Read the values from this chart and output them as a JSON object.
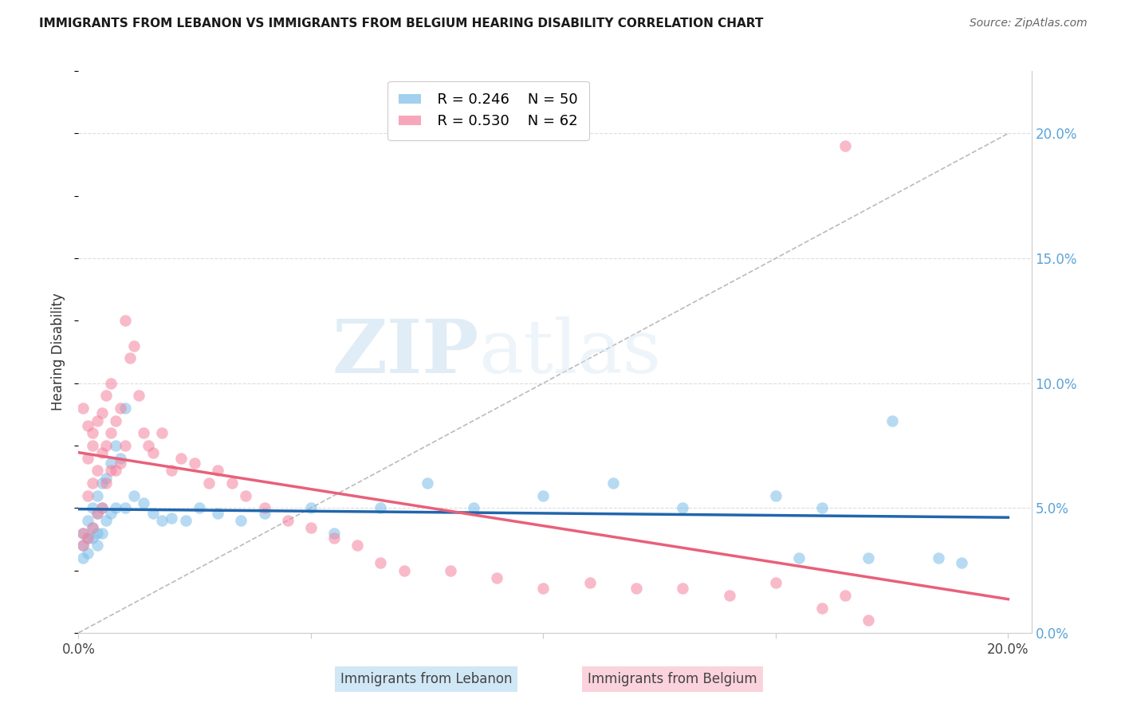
{
  "title": "IMMIGRANTS FROM LEBANON VS IMMIGRANTS FROM BELGIUM HEARING DISABILITY CORRELATION CHART",
  "source": "Source: ZipAtlas.com",
  "ylabel": "Hearing Disability",
  "xlim": [
    0.0,
    0.2
  ],
  "ylim": [
    0.0,
    0.22
  ],
  "legend_lebanon_R": "0.246",
  "legend_lebanon_N": "50",
  "legend_belgium_R": "0.530",
  "legend_belgium_N": "62",
  "color_lebanon": "#7bbde8",
  "color_belgium": "#f4829e",
  "color_lebanon_line": "#2166ac",
  "color_belgium_line": "#e8607a",
  "watermark_zip": "ZIP",
  "watermark_atlas": "atlas",
  "leb_x": [
    0.001,
    0.001,
    0.001,
    0.002,
    0.002,
    0.002,
    0.003,
    0.003,
    0.003,
    0.004,
    0.004,
    0.004,
    0.004,
    0.005,
    0.005,
    0.005,
    0.006,
    0.006,
    0.007,
    0.007,
    0.008,
    0.008,
    0.009,
    0.01,
    0.01,
    0.012,
    0.014,
    0.016,
    0.018,
    0.02,
    0.023,
    0.026,
    0.03,
    0.035,
    0.04,
    0.05,
    0.055,
    0.065,
    0.075,
    0.085,
    0.1,
    0.115,
    0.13,
    0.15,
    0.155,
    0.16,
    0.17,
    0.175,
    0.185,
    0.19
  ],
  "leb_y": [
    0.04,
    0.035,
    0.03,
    0.045,
    0.038,
    0.032,
    0.042,
    0.05,
    0.038,
    0.055,
    0.048,
    0.04,
    0.035,
    0.06,
    0.05,
    0.04,
    0.062,
    0.045,
    0.068,
    0.048,
    0.075,
    0.05,
    0.07,
    0.09,
    0.05,
    0.055,
    0.052,
    0.048,
    0.045,
    0.046,
    0.045,
    0.05,
    0.048,
    0.045,
    0.048,
    0.05,
    0.04,
    0.05,
    0.06,
    0.05,
    0.055,
    0.06,
    0.05,
    0.055,
    0.03,
    0.05,
    0.03,
    0.085,
    0.03,
    0.028
  ],
  "bel_x": [
    0.001,
    0.001,
    0.001,
    0.002,
    0.002,
    0.002,
    0.002,
    0.003,
    0.003,
    0.003,
    0.003,
    0.004,
    0.004,
    0.004,
    0.005,
    0.005,
    0.005,
    0.006,
    0.006,
    0.006,
    0.007,
    0.007,
    0.007,
    0.008,
    0.008,
    0.009,
    0.009,
    0.01,
    0.01,
    0.011,
    0.012,
    0.013,
    0.014,
    0.015,
    0.016,
    0.018,
    0.02,
    0.022,
    0.025,
    0.028,
    0.03,
    0.033,
    0.036,
    0.04,
    0.045,
    0.05,
    0.055,
    0.06,
    0.065,
    0.07,
    0.08,
    0.09,
    0.1,
    0.11,
    0.12,
    0.13,
    0.14,
    0.15,
    0.16,
    0.165,
    0.17,
    0.165
  ],
  "bel_y": [
    0.035,
    0.04,
    0.09,
    0.038,
    0.055,
    0.07,
    0.083,
    0.042,
    0.06,
    0.075,
    0.08,
    0.048,
    0.065,
    0.085,
    0.05,
    0.072,
    0.088,
    0.06,
    0.075,
    0.095,
    0.065,
    0.08,
    0.1,
    0.065,
    0.085,
    0.068,
    0.09,
    0.075,
    0.125,
    0.11,
    0.115,
    0.095,
    0.08,
    0.075,
    0.072,
    0.08,
    0.065,
    0.07,
    0.068,
    0.06,
    0.065,
    0.06,
    0.055,
    0.05,
    0.045,
    0.042,
    0.038,
    0.035,
    0.028,
    0.025,
    0.025,
    0.022,
    0.018,
    0.02,
    0.018,
    0.018,
    0.015,
    0.02,
    0.01,
    0.195,
    0.005,
    0.015
  ]
}
